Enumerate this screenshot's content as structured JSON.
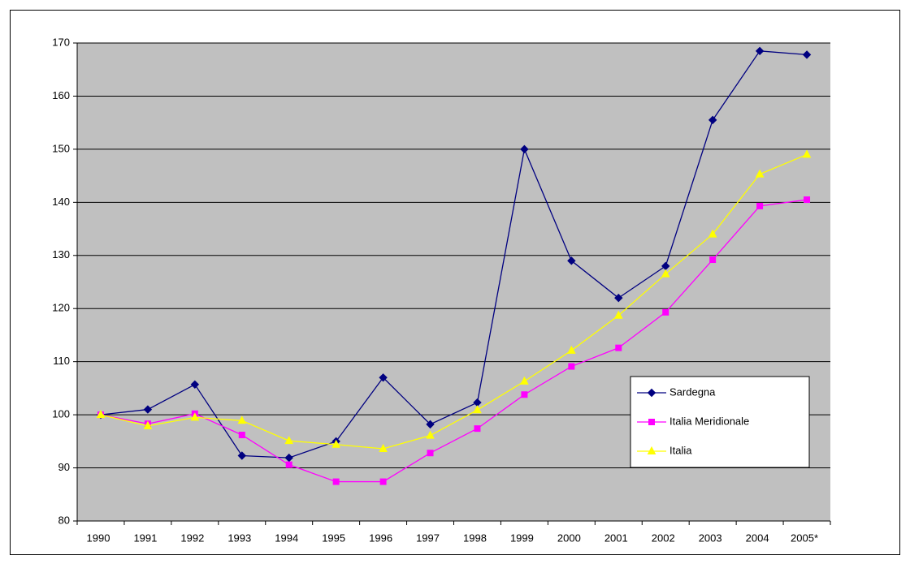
{
  "chart_data": {
    "type": "line",
    "categories": [
      "1990",
      "1991",
      "1992",
      "1993",
      "1994",
      "1995",
      "1996",
      "1997",
      "1998",
      "1999",
      "2000",
      "2001",
      "2002",
      "2003",
      "2004",
      "2005*"
    ],
    "series": [
      {
        "name": "Sardegna",
        "color": "#000080",
        "marker": "diamond",
        "values": [
          100,
          101,
          105.7,
          92.3,
          91.9,
          95,
          107,
          98.2,
          102.3,
          150,
          129,
          122,
          128,
          155.5,
          168.5,
          167.8
        ]
      },
      {
        "name": "Italia Meridionale",
        "color": "#ff00ff",
        "marker": "square",
        "values": [
          100,
          98.3,
          100.2,
          96.2,
          90.6,
          87.4,
          87.4,
          92.8,
          97.4,
          103.8,
          109.1,
          112.6,
          119.3,
          129.2,
          139.3,
          140.5
        ]
      },
      {
        "name": "Italia",
        "color": "#ffff00",
        "marker": "triangle",
        "values": [
          100,
          97.9,
          99.5,
          98.9,
          95.1,
          94.4,
          93.6,
          96.1,
          100.9,
          106.3,
          112.1,
          118.7,
          126.5,
          134,
          145.3,
          149
        ]
      }
    ],
    "ylim": [
      80,
      170
    ],
    "yticks": [
      80,
      90,
      100,
      110,
      120,
      130,
      140,
      150,
      160,
      170
    ],
    "grid": true,
    "legend_position": "lower right",
    "plot_background": "#c0c0c0"
  }
}
